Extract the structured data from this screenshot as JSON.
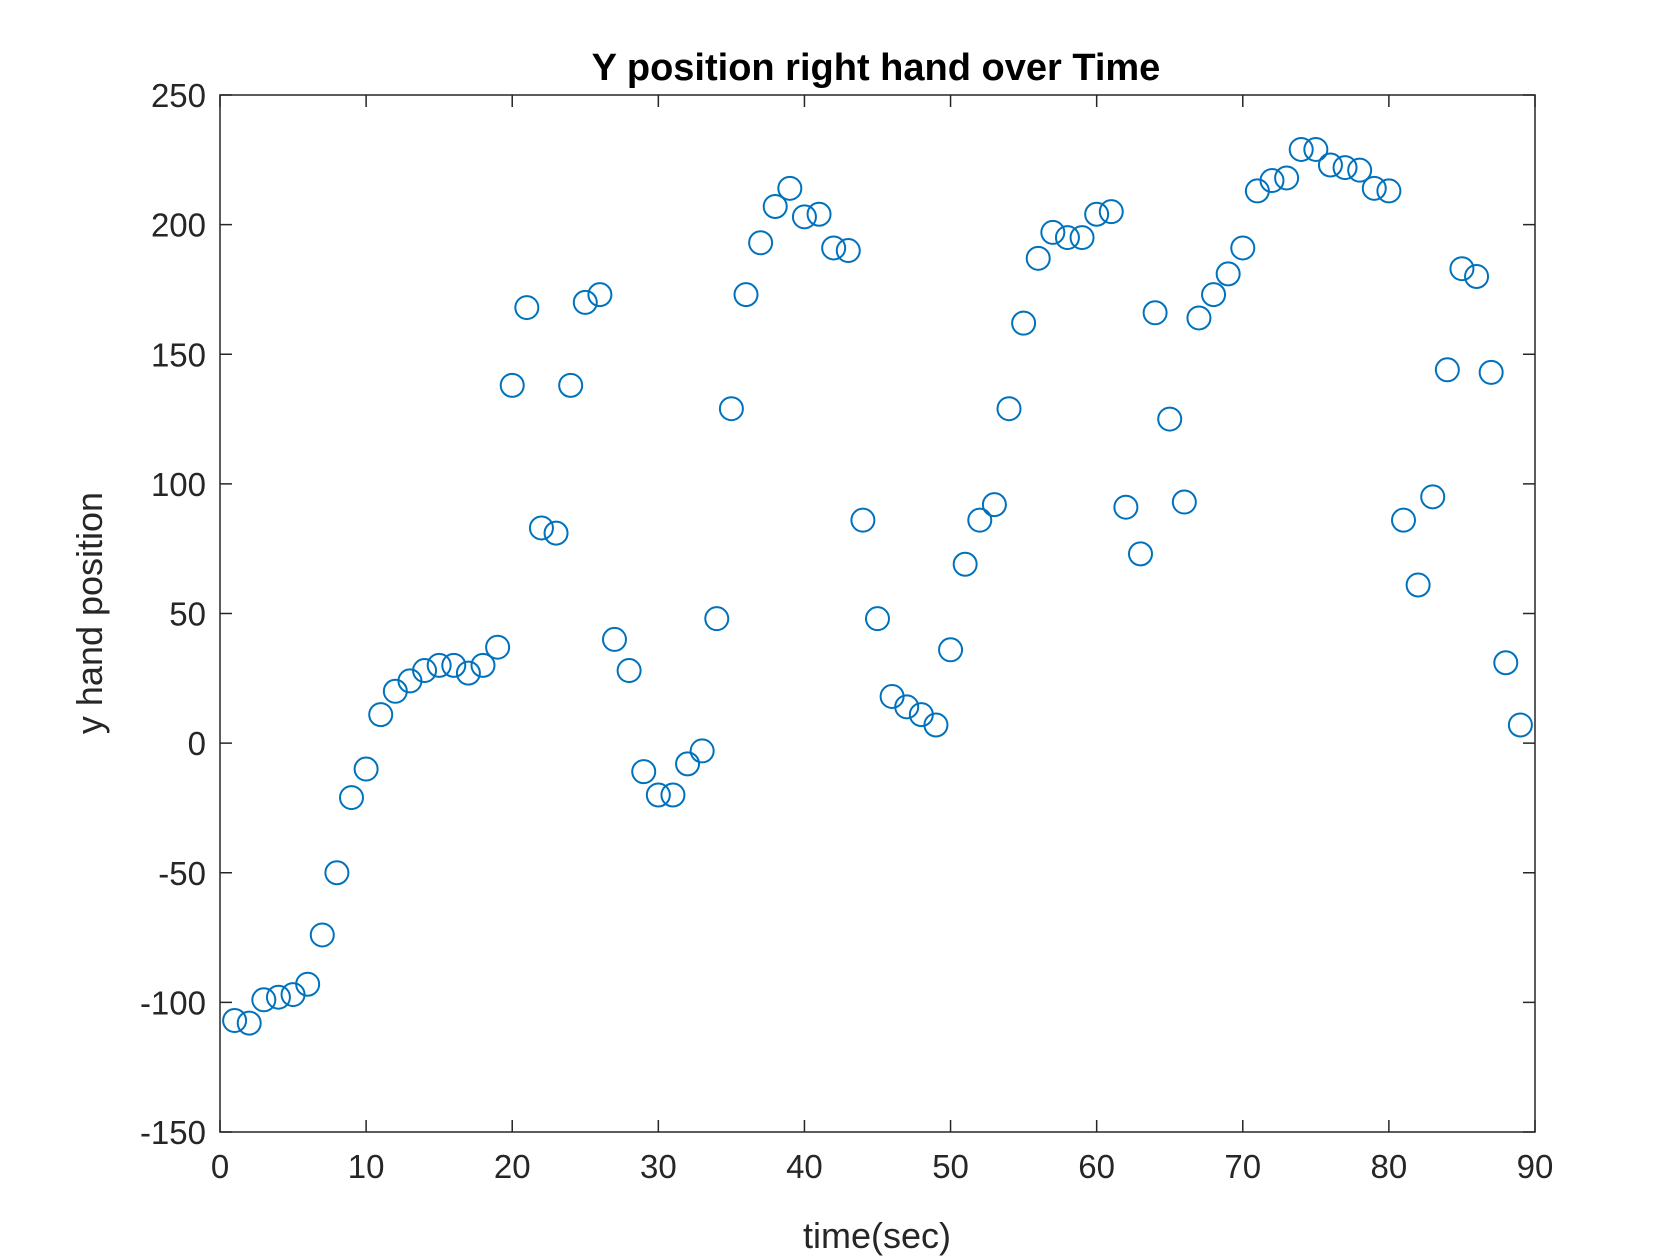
{
  "chart_data": {
    "type": "scatter",
    "title": "Y position right hand over Time",
    "xlabel": "time(sec)",
    "ylabel": "y hand position",
    "xlim": [
      0,
      90
    ],
    "ylim": [
      -150,
      250
    ],
    "xticks": [
      0,
      10,
      20,
      30,
      40,
      50,
      60,
      70,
      80,
      90
    ],
    "yticks": [
      -150,
      -100,
      -50,
      0,
      50,
      100,
      150,
      200,
      250
    ],
    "grid": false,
    "marker": "open-circle",
    "marker_color": "#0072BD",
    "series": [
      {
        "x": [
          1,
          2,
          3,
          4,
          5,
          6,
          7,
          8,
          9,
          10,
          11,
          12,
          13,
          14,
          15,
          16,
          17,
          18,
          19,
          20,
          21,
          22,
          23,
          24,
          25,
          26,
          27,
          28,
          29,
          30,
          31,
          32,
          33,
          34,
          35,
          36,
          37,
          38,
          39,
          40,
          41,
          42,
          43,
          44,
          45,
          46,
          47,
          48,
          49,
          50,
          51,
          52,
          53,
          54,
          55,
          56,
          57,
          58,
          59,
          60,
          61,
          62,
          63,
          64,
          65,
          66,
          67,
          68,
          69,
          70,
          71,
          72,
          73,
          74,
          75,
          76,
          77,
          78,
          79,
          80,
          81,
          82,
          83,
          84,
          85,
          86,
          87,
          88,
          89
        ],
        "y": [
          -107,
          -108,
          -99,
          -98,
          -97,
          -93,
          -74,
          -50,
          -21,
          -10,
          11,
          20,
          24,
          28,
          30,
          30,
          27,
          30,
          37,
          138,
          168,
          83,
          81,
          138,
          170,
          173,
          40,
          28,
          -11,
          -20,
          -20,
          -8,
          -3,
          48,
          129,
          173,
          193,
          207,
          214,
          203,
          204,
          191,
          190,
          86,
          48,
          18,
          14,
          11,
          7,
          36,
          69,
          86,
          92,
          129,
          162,
          187,
          197,
          195,
          195,
          204,
          205,
          91,
          73,
          166,
          125,
          93,
          164,
          173,
          181,
          191,
          213,
          217,
          218,
          229,
          229,
          223,
          222,
          221,
          214,
          213,
          86,
          61,
          95,
          144,
          183,
          180,
          143,
          31,
          7
        ]
      }
    ]
  }
}
